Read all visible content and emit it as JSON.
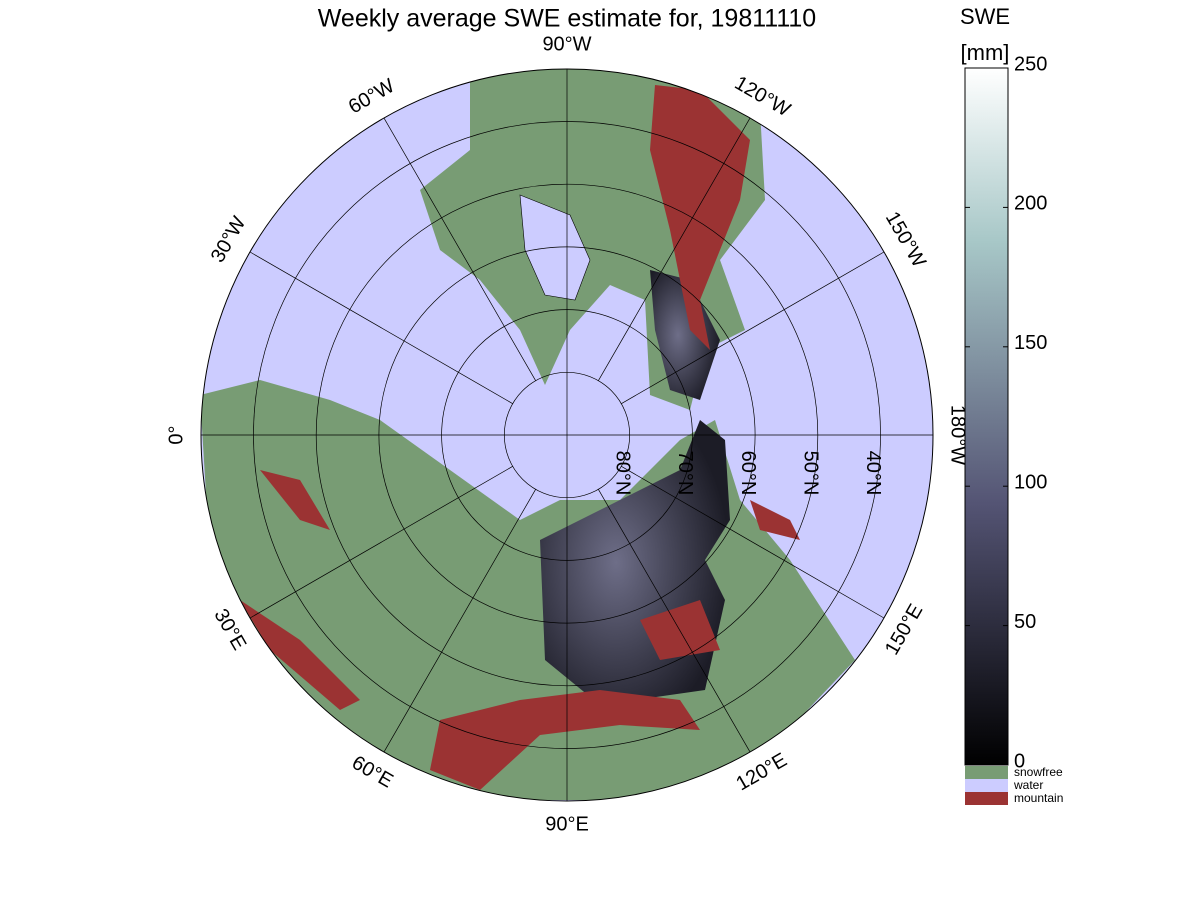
{
  "title": "Weekly average SWE estimate for, 19811110",
  "map": {
    "meridians": [
      {
        "value": -90,
        "label": "90°W"
      },
      {
        "value": -60,
        "label": "60°W"
      },
      {
        "value": -120,
        "label": "120°W"
      },
      {
        "value": -30,
        "label": "30°W"
      },
      {
        "value": -150,
        "label": "150°W"
      },
      {
        "value": 0,
        "label": "0°"
      },
      {
        "value": -180,
        "label": "180°W"
      },
      {
        "value": 30,
        "label": "30°E"
      },
      {
        "value": 150,
        "label": "150°E"
      },
      {
        "value": 60,
        "label": "60°E"
      },
      {
        "value": 120,
        "label": "120°E"
      },
      {
        "value": 90,
        "label": "90°E"
      }
    ],
    "parallels": [
      {
        "value": 80,
        "label": "80°N"
      },
      {
        "value": 70,
        "label": "70°N"
      },
      {
        "value": 60,
        "label": "60°N"
      },
      {
        "value": 50,
        "label": "50°N"
      },
      {
        "value": 40,
        "label": "40°N"
      }
    ]
  },
  "colorbar": {
    "title": "SWE",
    "unit": "[mm]",
    "clim": [
      0,
      250
    ],
    "ticks": [
      0,
      50,
      100,
      150,
      200,
      250
    ],
    "categories": [
      {
        "label": "snowfree",
        "color": "#789c74"
      },
      {
        "label": "water",
        "color": "#ccccff"
      },
      {
        "label": "mountain",
        "color": "#9b3333"
      }
    ]
  }
}
